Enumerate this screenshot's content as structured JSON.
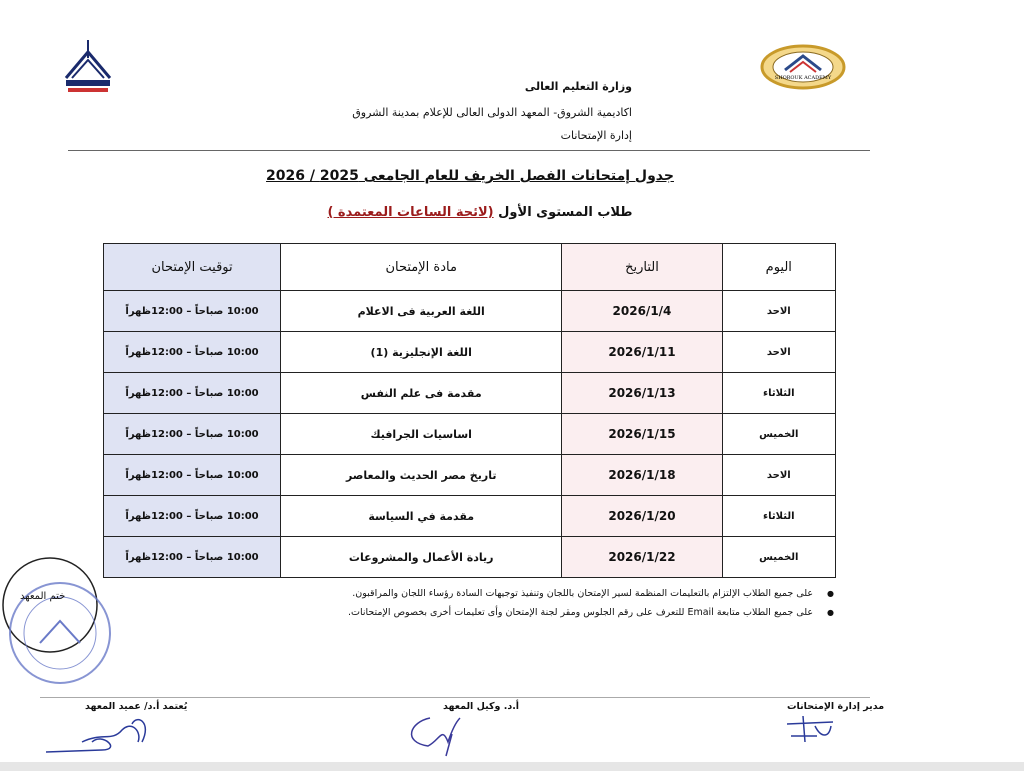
{
  "header": {
    "ministry": "وزارة التعليم العالى",
    "academy": "اكاديمية الشروق- المعهد الدولى العالى للإعلام بمدينة الشروق",
    "department": "إدارة الإمتحانات",
    "right_logo_text": "SHOROUK ACADEMY",
    "left_logo_text": "المعهد الدولى العالى للإعلام"
  },
  "title": "جدول إمتحانات الفصل الخريف للعام الجامعى 2025 / 2026",
  "subtitle": {
    "prefix": "طلاب المستوى الأول ",
    "highlight": "(لائحة الساعات المعتمدة )"
  },
  "table": {
    "headers": {
      "day": "اليوم",
      "date": "التاريخ",
      "subject": "مادة الإمتحان",
      "time": "توقيت الإمتحان"
    },
    "rows": [
      {
        "day": "الاحد",
        "date": "2026/1/4",
        "subject": "اللغة العربية فى الاعلام",
        "time": "10:00 صباحاً – 12:00ظهراً"
      },
      {
        "day": "الاحد",
        "date": "2026/1/11",
        "subject": "اللغة الإنجليزية (1)",
        "time": "10:00 صباحاً – 12:00ظهراً"
      },
      {
        "day": "الثلاثاء",
        "date": "2026/1/13",
        "subject": "مقدمة فى علم النفس",
        "time": "10:00 صباحاً – 12:00ظهراً"
      },
      {
        "day": "الخميس",
        "date": "2026/1/15",
        "subject": "اساسيات الجرافيك",
        "time": "10:00 صباحاً – 12:00ظهراً"
      },
      {
        "day": "الاحد",
        "date": "2026/1/18",
        "subject": "تاريخ مصر الحديث والمعاصر",
        "time": "10:00 صباحاً – 12:00ظهراً"
      },
      {
        "day": "الثلاثاء",
        "date": "2026/1/20",
        "subject": "مقدمة في السياسة",
        "time": "10:00 صباحاً – 12:00ظهراً"
      },
      {
        "day": "الخميس",
        "date": "2026/1/22",
        "subject": "ريادة الأعمال والمشروعات",
        "time": "10:00 صباحاً – 12:00ظهراً"
      }
    ]
  },
  "notes": [
    "على جميع الطلاب الإلتزام بالتعليمات المنظمة لسير الإمتحان باللجان وتنفيذ توجيهات السادة رؤساء اللجان والمراقبون.",
    "على جميع الطلاب متابعة Email للتعرف على رقم الجلوس ومقر لجنة الإمتحان وأى تعليمات أخرى بخصوص الإمتحانات."
  ],
  "signatures": {
    "exams_director": "مدير إدارة الإمتحانات",
    "vice_dean": "أ.د. وكيل المعهد",
    "dean": "يُعتمد أ.د/ عميد المعهد"
  },
  "stamp_text": "ختم المعهد",
  "colors": {
    "date_column": "#fbeef0",
    "time_column": "#dfe3f3",
    "signature_ink": "#2a3a9a",
    "subtitle_highlight": "#9b1b1b"
  }
}
